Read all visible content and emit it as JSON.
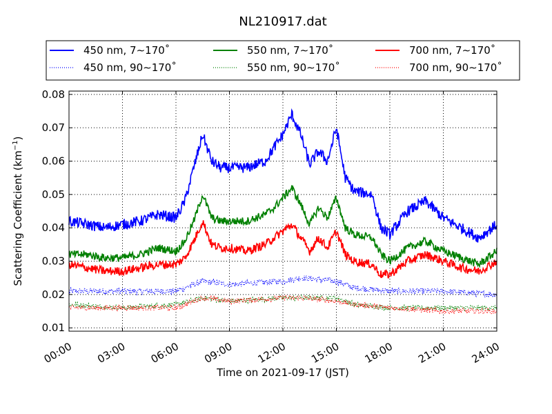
{
  "chart_data": {
    "type": "line",
    "title": "NL210917.dat",
    "xlabel": "Time on 2021-09-17 (JST)",
    "ylabel": "Scattering Coefficient (km",
    "ylabel_sup": "−1",
    "ylabel_close": ")",
    "xlim": [
      0,
      24
    ],
    "ylim": [
      0.009,
      0.081
    ],
    "grid": true,
    "legend_position": "top (outside plot)",
    "x_ticks": [
      {
        "value": 0,
        "label": "00:00"
      },
      {
        "value": 3,
        "label": "03:00"
      },
      {
        "value": 6,
        "label": "06:00"
      },
      {
        "value": 9,
        "label": "09:00"
      },
      {
        "value": 12,
        "label": "12:00"
      },
      {
        "value": 15,
        "label": "15:00"
      },
      {
        "value": 18,
        "label": "18:00"
      },
      {
        "value": 21,
        "label": "21:00"
      },
      {
        "value": 24,
        "label": "24:00"
      }
    ],
    "y_ticks": [
      {
        "value": 0.01,
        "label": "0.01"
      },
      {
        "value": 0.02,
        "label": "0.02"
      },
      {
        "value": 0.03,
        "label": "0.03"
      },
      {
        "value": 0.04,
        "label": "0.04"
      },
      {
        "value": 0.05,
        "label": "0.05"
      },
      {
        "value": 0.06,
        "label": "0.06"
      },
      {
        "value": 0.07,
        "label": "0.07"
      },
      {
        "value": 0.08,
        "label": "0.08"
      }
    ],
    "series": [
      {
        "name": "450 nm, 7∼170˚",
        "color": "#0000ff",
        "style": "solid",
        "noise": 0.0016,
        "x": [
          0,
          1,
          2,
          3,
          4,
          5,
          6,
          6.5,
          7,
          7.5,
          8,
          8.5,
          9,
          10,
          11,
          11.5,
          12,
          12.5,
          13,
          13.5,
          14,
          14.5,
          15,
          15.5,
          16,
          17,
          17.5,
          18,
          19,
          20,
          21,
          22,
          23,
          24
        ],
        "y": [
          0.042,
          0.041,
          0.04,
          0.041,
          0.042,
          0.044,
          0.043,
          0.048,
          0.058,
          0.068,
          0.06,
          0.058,
          0.058,
          0.058,
          0.06,
          0.064,
          0.068,
          0.074,
          0.068,
          0.059,
          0.063,
          0.06,
          0.07,
          0.055,
          0.051,
          0.05,
          0.04,
          0.038,
          0.045,
          0.048,
          0.043,
          0.04,
          0.037,
          0.041
        ]
      },
      {
        "name": "550 nm, 7∼170˚",
        "color": "#008000",
        "style": "solid",
        "noise": 0.0012,
        "x": [
          0,
          1,
          2,
          3,
          4,
          5,
          6,
          6.5,
          7,
          7.5,
          8,
          8.5,
          9,
          10,
          11,
          11.5,
          12,
          12.5,
          13,
          13.5,
          14,
          14.5,
          15,
          15.5,
          16,
          17,
          17.5,
          18,
          19,
          20,
          21,
          22,
          23,
          24
        ],
        "y": [
          0.032,
          0.032,
          0.031,
          0.031,
          0.032,
          0.034,
          0.033,
          0.036,
          0.042,
          0.05,
          0.043,
          0.042,
          0.042,
          0.042,
          0.044,
          0.046,
          0.049,
          0.052,
          0.047,
          0.041,
          0.046,
          0.043,
          0.049,
          0.04,
          0.038,
          0.037,
          0.032,
          0.03,
          0.034,
          0.036,
          0.033,
          0.031,
          0.029,
          0.033
        ]
      },
      {
        "name": "700 nm, 7∼170˚",
        "color": "#ff0000",
        "style": "solid",
        "noise": 0.0013,
        "x": [
          0,
          1,
          2,
          3,
          4,
          5,
          6,
          6.5,
          7,
          7.5,
          8,
          8.5,
          9,
          10,
          11,
          11.5,
          12,
          12.5,
          13,
          13.5,
          14,
          14.5,
          15,
          15.5,
          16,
          17,
          17.5,
          18,
          19,
          20,
          21,
          22,
          23,
          24
        ],
        "y": [
          0.029,
          0.028,
          0.027,
          0.027,
          0.028,
          0.029,
          0.029,
          0.031,
          0.036,
          0.042,
          0.035,
          0.034,
          0.034,
          0.033,
          0.035,
          0.037,
          0.039,
          0.041,
          0.037,
          0.033,
          0.037,
          0.034,
          0.039,
          0.032,
          0.03,
          0.029,
          0.026,
          0.026,
          0.03,
          0.032,
          0.03,
          0.028,
          0.027,
          0.03
        ]
      },
      {
        "name": "450 nm, 90∼170˚",
        "color": "#0000ff",
        "style": "dotted",
        "noise": 0.0009,
        "x": [
          0,
          3,
          6,
          7.5,
          9,
          12,
          13,
          15,
          16,
          18,
          21,
          24
        ],
        "y": [
          0.021,
          0.021,
          0.021,
          0.024,
          0.023,
          0.024,
          0.025,
          0.024,
          0.022,
          0.021,
          0.021,
          0.02
        ]
      },
      {
        "name": "550 nm, 90∼170˚",
        "color": "#008000",
        "style": "dotted",
        "noise": 0.0008,
        "x": [
          0,
          3,
          6,
          7.5,
          9,
          12,
          13,
          15,
          16,
          18,
          21,
          24
        ],
        "y": [
          0.017,
          0.016,
          0.017,
          0.019,
          0.018,
          0.019,
          0.019,
          0.019,
          0.017,
          0.016,
          0.016,
          0.016
        ]
      },
      {
        "name": "700 nm, 90∼170˚",
        "color": "#ff0000",
        "style": "dotted",
        "noise": 0.0008,
        "x": [
          0,
          3,
          6,
          7.5,
          9,
          12,
          13,
          15,
          16,
          18,
          21,
          24
        ],
        "y": [
          0.016,
          0.016,
          0.016,
          0.019,
          0.018,
          0.019,
          0.019,
          0.018,
          0.017,
          0.016,
          0.015,
          0.015
        ]
      }
    ]
  }
}
